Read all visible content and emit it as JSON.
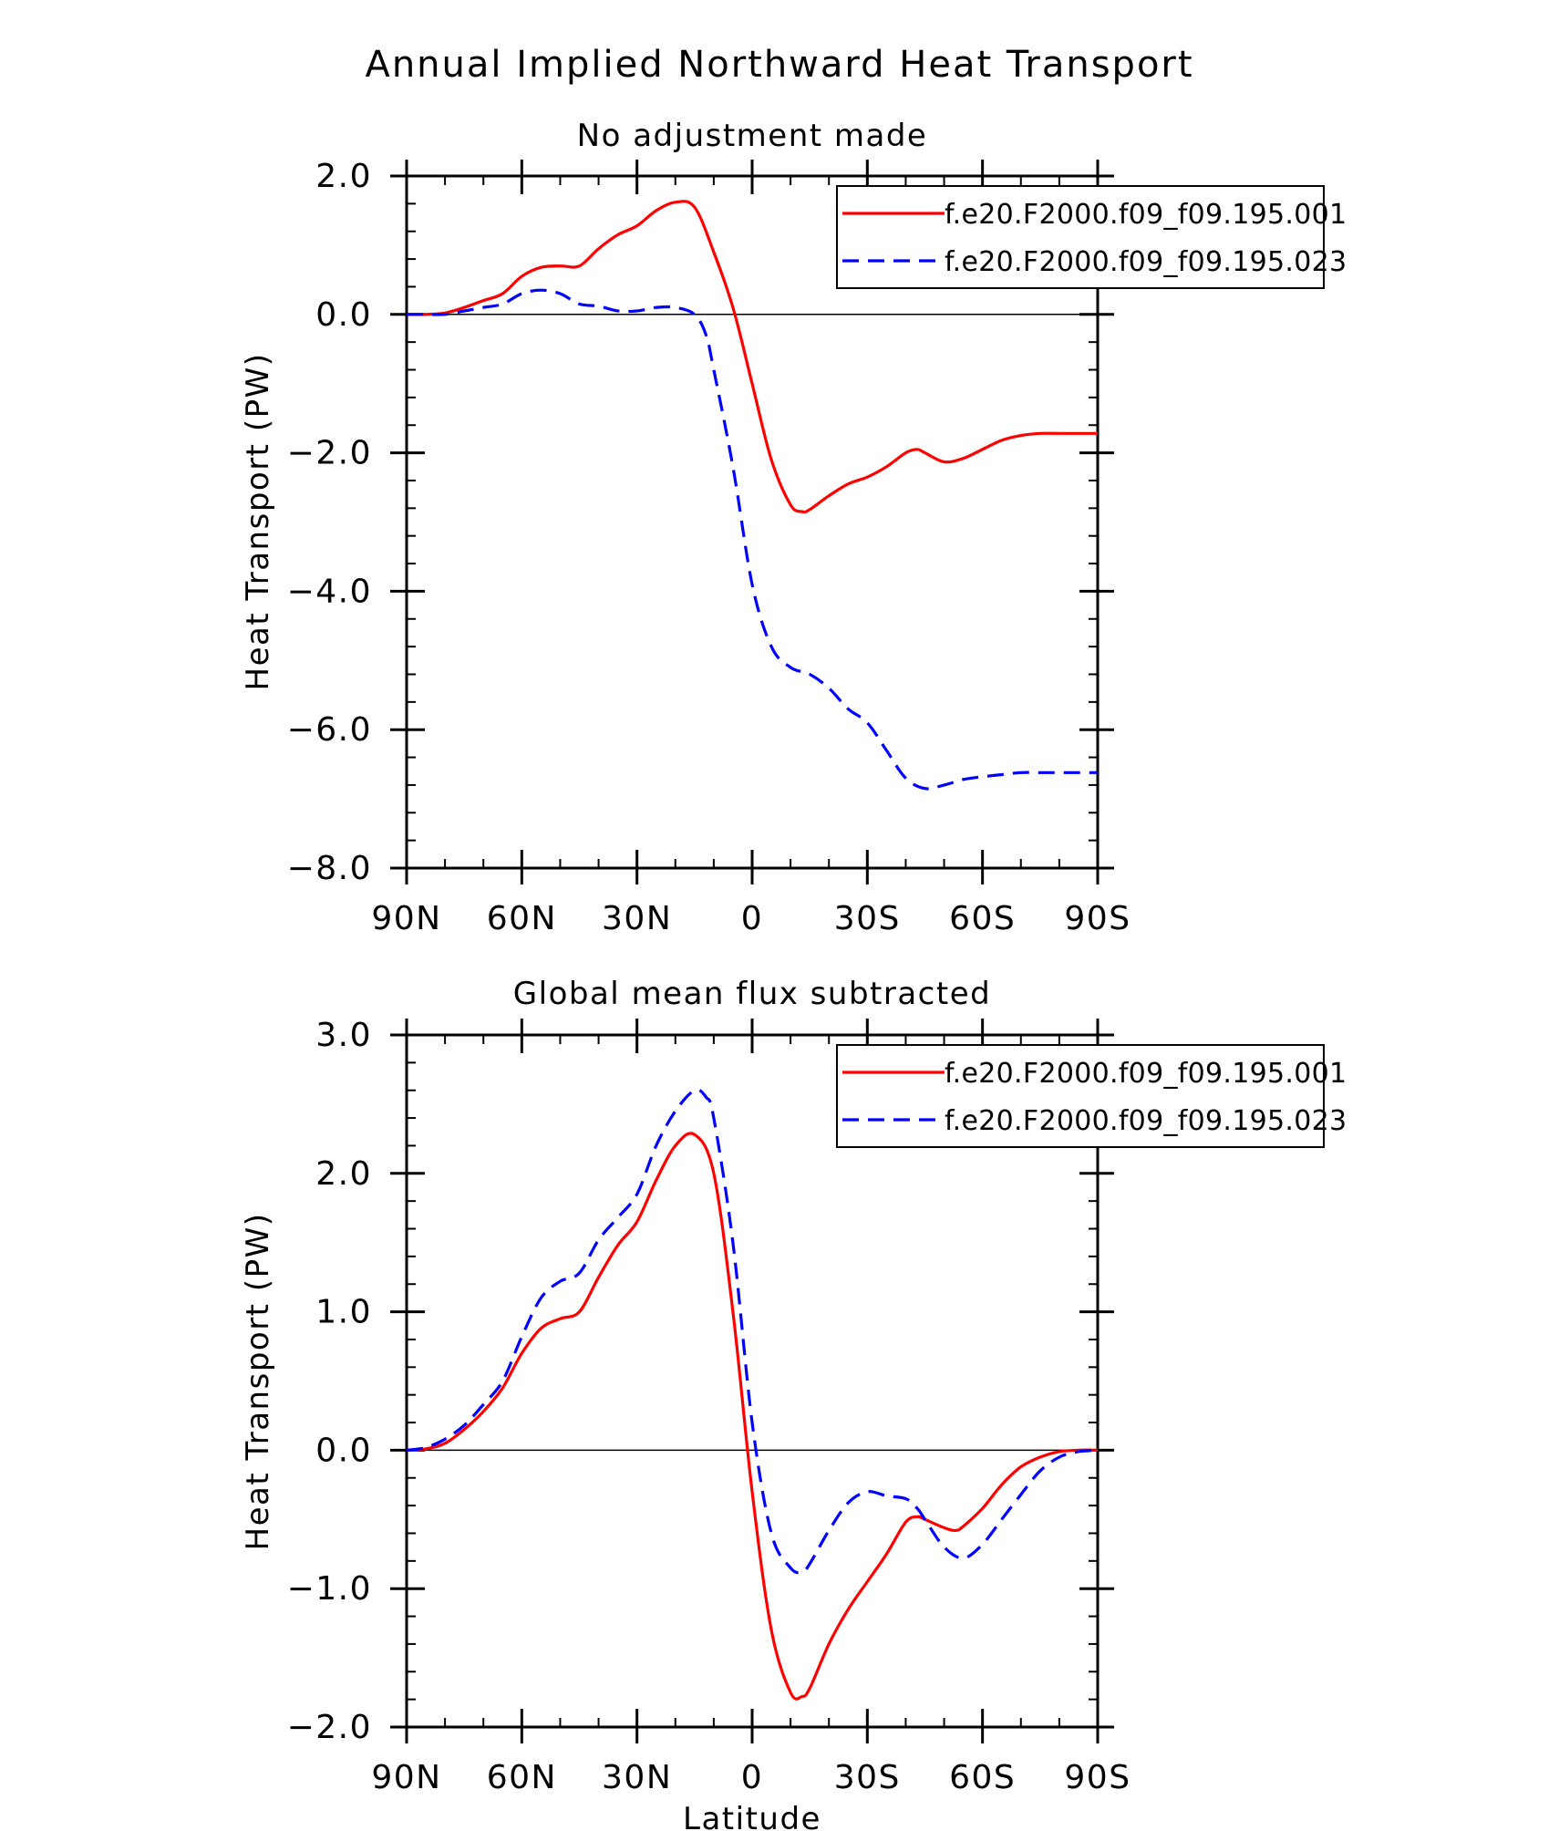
{
  "figure": {
    "title": "Annual Implied Northward Heat Transport"
  },
  "colors": {
    "series_a": "#ff0000",
    "series_b": "#0000ff",
    "axis": "#000000"
  },
  "chart_data": [
    {
      "type": "line",
      "title": "No adjustment made",
      "xlabel": "",
      "ylabel": "Heat Transport (PW)",
      "xlim": [
        90,
        -90
      ],
      "ylim": [
        -8,
        2
      ],
      "xticks": [
        90,
        60,
        30,
        0,
        -30,
        -60,
        -90
      ],
      "xtick_labels": [
        "90N",
        "60N",
        "30N",
        "0",
        "30S",
        "60S",
        "90S"
      ],
      "yticks": [
        -8,
        -6,
        -4,
        -2,
        0,
        2
      ],
      "ytick_labels": [
        "−8.0",
        "−6.0",
        "−4.0",
        "−2.0",
        "0.0",
        "2.0"
      ],
      "zero_line": true,
      "legend_position": "top-right",
      "series": [
        {
          "name": "f.e20.F2000.f09_f09.195.001",
          "style": "solid",
          "x": [
            90,
            85,
            80,
            75,
            70,
            65,
            60,
            55,
            50,
            45,
            40,
            35,
            30,
            25,
            20,
            15,
            10,
            5,
            0,
            -5,
            -10,
            -13,
            -15,
            -20,
            -25,
            -30,
            -35,
            -40,
            -43,
            -45,
            -50,
            -55,
            -60,
            -65,
            -70,
            -75,
            -80,
            -85,
            -90
          ],
          "y": [
            0,
            0,
            0.02,
            0.1,
            0.2,
            0.3,
            0.55,
            0.68,
            0.7,
            0.7,
            0.95,
            1.15,
            1.28,
            1.5,
            1.62,
            1.55,
            0.9,
            0.1,
            -1.0,
            -2.1,
            -2.75,
            -2.85,
            -2.82,
            -2.62,
            -2.45,
            -2.35,
            -2.2,
            -2.0,
            -1.95,
            -2.0,
            -2.13,
            -2.08,
            -1.95,
            -1.82,
            -1.75,
            -1.72,
            -1.72,
            -1.72,
            -1.72
          ]
        },
        {
          "name": "f.e20.F2000.f09_f09.195.023",
          "style": "dashed",
          "x": [
            90,
            85,
            80,
            75,
            70,
            65,
            60,
            55,
            50,
            45,
            40,
            35,
            30,
            25,
            20,
            15,
            12,
            10,
            5,
            0,
            -5,
            -10,
            -15,
            -20,
            -25,
            -30,
            -35,
            -40,
            -45,
            -50,
            -55,
            -60,
            -65,
            -70,
            -75,
            -80,
            -85,
            -90
          ],
          "y": [
            0,
            0,
            0.0,
            0.05,
            0.1,
            0.15,
            0.3,
            0.35,
            0.3,
            0.15,
            0.12,
            0.05,
            0.05,
            0.1,
            0.1,
            0.0,
            -0.3,
            -0.8,
            -2.2,
            -3.9,
            -4.8,
            -5.1,
            -5.2,
            -5.4,
            -5.7,
            -5.9,
            -6.3,
            -6.7,
            -6.85,
            -6.8,
            -6.72,
            -6.68,
            -6.65,
            -6.62,
            -6.62,
            -6.62,
            -6.62,
            -6.62
          ]
        }
      ]
    },
    {
      "type": "line",
      "title": "Global mean flux subtracted",
      "xlabel": "Latitude",
      "ylabel": "Heat Transport (PW)",
      "xlim": [
        90,
        -90
      ],
      "ylim": [
        -2,
        3
      ],
      "xticks": [
        90,
        60,
        30,
        0,
        -30,
        -60,
        -90
      ],
      "xtick_labels": [
        "90N",
        "60N",
        "30N",
        "0",
        "30S",
        "60S",
        "90S"
      ],
      "yticks": [
        -2,
        -1,
        0,
        1,
        2,
        3
      ],
      "ytick_labels": [
        "−2.0",
        "−1.0",
        "0.0",
        "1.0",
        "2.0",
        "3.0"
      ],
      "zero_line": true,
      "legend_position": "top-right",
      "series": [
        {
          "name": "f.e20.F2000.f09_f09.195.001",
          "style": "solid",
          "x": [
            90,
            85,
            80,
            75,
            70,
            65,
            60,
            55,
            50,
            45,
            40,
            35,
            30,
            25,
            20,
            15,
            10,
            5,
            0,
            -5,
            -10,
            -13,
            -15,
            -20,
            -25,
            -30,
            -35,
            -40,
            -43,
            -45,
            -50,
            -53,
            -55,
            -60,
            -65,
            -70,
            -75,
            -80,
            -85,
            -90
          ],
          "y": [
            0,
            0.01,
            0.05,
            0.15,
            0.28,
            0.45,
            0.7,
            0.88,
            0.95,
            1.0,
            1.25,
            1.48,
            1.65,
            1.95,
            2.2,
            2.28,
            2.0,
            1.0,
            -0.3,
            -1.3,
            -1.75,
            -1.78,
            -1.72,
            -1.4,
            -1.15,
            -0.95,
            -0.75,
            -0.52,
            -0.48,
            -0.5,
            -0.56,
            -0.58,
            -0.55,
            -0.42,
            -0.25,
            -0.12,
            -0.05,
            -0.01,
            0,
            0
          ]
        },
        {
          "name": "f.e20.F2000.f09_f09.195.023",
          "style": "dashed",
          "x": [
            90,
            85,
            80,
            75,
            70,
            65,
            60,
            55,
            50,
            45,
            40,
            35,
            30,
            25,
            20,
            15,
            12,
            10,
            5,
            0,
            -5,
            -10,
            -13,
            -15,
            -20,
            -25,
            -30,
            -35,
            -40,
            -43,
            -45,
            -50,
            -55,
            -60,
            -65,
            -70,
            -75,
            -80,
            -85,
            -90
          ],
          "y": [
            0,
            0.02,
            0.08,
            0.18,
            0.33,
            0.5,
            0.82,
            1.1,
            1.22,
            1.28,
            1.52,
            1.68,
            1.85,
            2.2,
            2.45,
            2.6,
            2.55,
            2.4,
            1.5,
            0.2,
            -0.6,
            -0.85,
            -0.88,
            -0.82,
            -0.58,
            -0.38,
            -0.3,
            -0.33,
            -0.35,
            -0.42,
            -0.5,
            -0.7,
            -0.78,
            -0.68,
            -0.5,
            -0.32,
            -0.15,
            -0.05,
            -0.01,
            0
          ]
        }
      ]
    }
  ]
}
